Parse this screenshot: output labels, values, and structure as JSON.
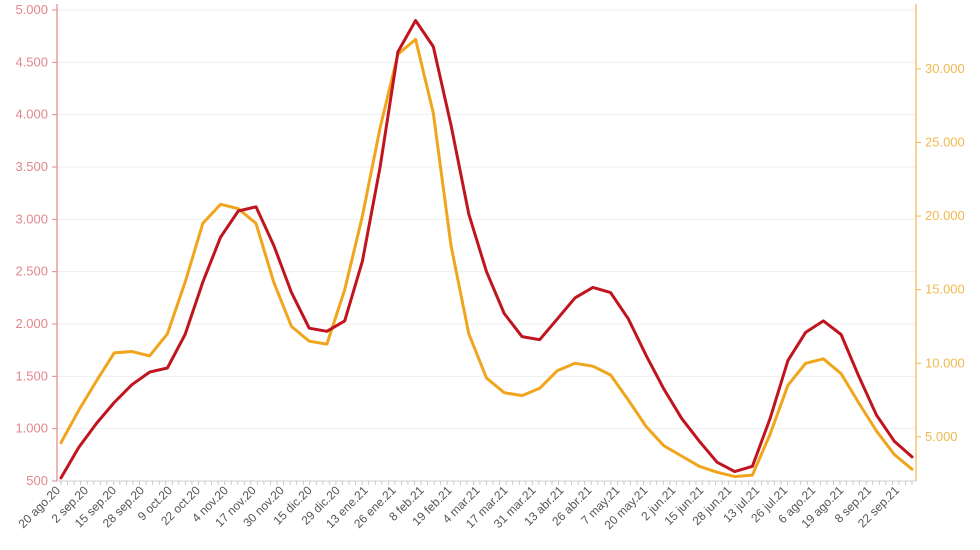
{
  "chart_data": {
    "type": "line",
    "title": "",
    "xlabel": "",
    "ylabel_left": "",
    "ylabel_right": "",
    "grid": true,
    "legend": "none",
    "x_ticks": [
      "20 ago.20",
      "2 sep.20",
      "15 sep.20",
      "28 sep.20",
      "9 oct.20",
      "22 oct.20",
      "4 nov.20",
      "17 nov.20",
      "30 nov.20",
      "15 dic.20",
      "29 dic.20",
      "13 ene.21",
      "26 ene.21",
      "8 feb.21",
      "19 feb.21",
      "4 mar.21",
      "17 mar.21",
      "31 mar.21",
      "13 abr.21",
      "26 abr.21",
      "7 may.21",
      "20 may.21",
      "2 jun.21",
      "15 jun.21",
      "28 jun.21",
      "13 jul.21",
      "26 jul.21",
      "6 ago.21",
      "19 ago.21",
      "8 sep.21",
      "22 sep.21"
    ],
    "y_left": {
      "ylim": [
        500,
        5000
      ],
      "ticks": [
        500,
        1000,
        1500,
        2000,
        2500,
        3000,
        3500,
        4000,
        4500,
        5000
      ],
      "tick_labels": [
        "500",
        "1.000",
        "1.500",
        "2.000",
        "2.500",
        "3.000",
        "3.500",
        "4.000",
        "4.500",
        "5.000"
      ],
      "color": "#e2878c"
    },
    "y_right": {
      "ylim": [
        2000,
        34000
      ],
      "ticks": [
        5000,
        10000,
        15000,
        20000,
        25000,
        30000
      ],
      "tick_labels": [
        "5.000",
        "10.000",
        "15.000",
        "20.000",
        "25.000",
        "30.000"
      ],
      "color": "#f2b84e"
    },
    "series": [
      {
        "axis": "left",
        "color": "#c0151f",
        "points": [
          [
            0,
            530
          ],
          [
            1,
            820
          ],
          [
            2,
            1050
          ],
          [
            3,
            1250
          ],
          [
            4,
            1420
          ],
          [
            5,
            1540
          ],
          [
            6,
            1580
          ],
          [
            7,
            1900
          ],
          [
            8,
            2400
          ],
          [
            9,
            2830
          ],
          [
            10,
            3080
          ],
          [
            11,
            3120
          ],
          [
            12,
            2750
          ],
          [
            13,
            2300
          ],
          [
            14,
            1960
          ],
          [
            15,
            1930
          ],
          [
            16,
            2030
          ],
          [
            17,
            2600
          ],
          [
            18,
            3500
          ],
          [
            19,
            4600
          ],
          [
            20,
            4900
          ],
          [
            21,
            4650
          ],
          [
            22,
            3900
          ],
          [
            23,
            3050
          ],
          [
            24,
            2500
          ],
          [
            25,
            2100
          ],
          [
            26,
            1880
          ],
          [
            27,
            1850
          ],
          [
            28,
            2050
          ],
          [
            29,
            2250
          ],
          [
            30,
            2350
          ],
          [
            31,
            2300
          ],
          [
            32,
            2050
          ],
          [
            33,
            1700
          ],
          [
            34,
            1380
          ],
          [
            35,
            1100
          ],
          [
            36,
            880
          ],
          [
            37,
            680
          ],
          [
            38,
            590
          ],
          [
            39,
            640
          ],
          [
            40,
            1100
          ],
          [
            41,
            1650
          ],
          [
            42,
            1920
          ],
          [
            43,
            2030
          ],
          [
            44,
            1900
          ],
          [
            45,
            1500
          ],
          [
            46,
            1130
          ],
          [
            47,
            880
          ],
          [
            48,
            730
          ]
        ]
      },
      {
        "axis": "right",
        "color": "#f0a51c",
        "points": [
          [
            0,
            4600
          ],
          [
            1,
            6800
          ],
          [
            2,
            8800
          ],
          [
            3,
            10700
          ],
          [
            4,
            10800
          ],
          [
            5,
            10500
          ],
          [
            6,
            12000
          ],
          [
            7,
            15500
          ],
          [
            8,
            19500
          ],
          [
            9,
            20800
          ],
          [
            10,
            20500
          ],
          [
            11,
            19500
          ],
          [
            12,
            15500
          ],
          [
            13,
            12500
          ],
          [
            14,
            11500
          ],
          [
            15,
            11300
          ],
          [
            16,
            15000
          ],
          [
            17,
            20000
          ],
          [
            18,
            26000
          ],
          [
            19,
            31000
          ],
          [
            20,
            32000
          ],
          [
            21,
            27000
          ],
          [
            22,
            18000
          ],
          [
            23,
            12000
          ],
          [
            24,
            9000
          ],
          [
            25,
            8000
          ],
          [
            26,
            7800
          ],
          [
            27,
            8300
          ],
          [
            28,
            9500
          ],
          [
            29,
            10000
          ],
          [
            30,
            9800
          ],
          [
            31,
            9200
          ],
          [
            32,
            7500
          ],
          [
            33,
            5700
          ],
          [
            34,
            4400
          ],
          [
            35,
            3700
          ],
          [
            36,
            3000
          ],
          [
            37,
            2600
          ],
          [
            38,
            2300
          ],
          [
            39,
            2400
          ],
          [
            40,
            5200
          ],
          [
            41,
            8500
          ],
          [
            42,
            10000
          ],
          [
            43,
            10300
          ],
          [
            44,
            9300
          ],
          [
            45,
            7300
          ],
          [
            46,
            5400
          ],
          [
            47,
            3800
          ],
          [
            48,
            2800
          ]
        ]
      }
    ]
  }
}
